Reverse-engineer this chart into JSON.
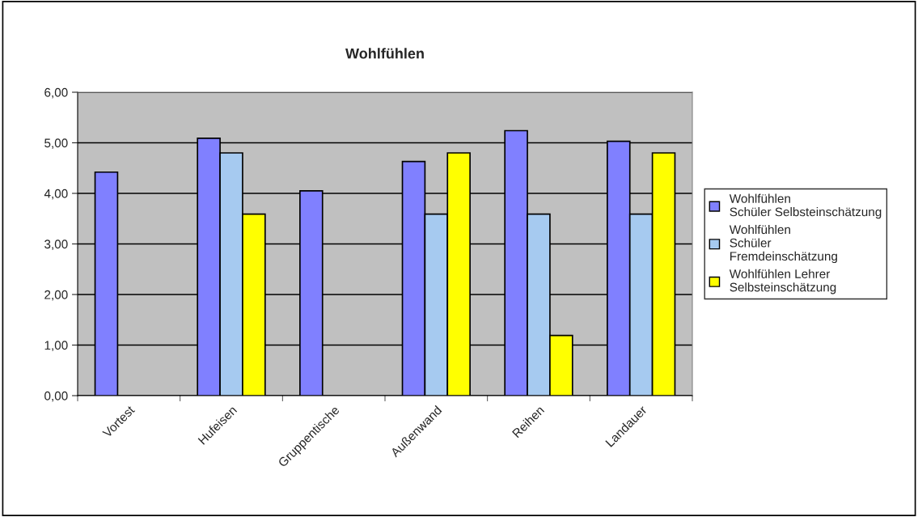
{
  "chart_data": {
    "type": "bar",
    "title": "Wohlfühlen",
    "categories": [
      "Vortest",
      "Hufeisen",
      "Gruppentische",
      "Außenwand",
      "Reihen",
      "Landauer"
    ],
    "series": [
      {
        "name": "Wohlfühlen Schüler Selbsteinschätzung",
        "color": "#8080ff",
        "values": [
          4.42,
          5.09,
          4.05,
          4.63,
          5.24,
          5.03
        ]
      },
      {
        "name": "Wohlfühlen Schüler Fremdeinschätzung",
        "color": "#a6caf0",
        "values": [
          null,
          4.8,
          null,
          3.59,
          3.59,
          3.59
        ]
      },
      {
        "name": "Wohlfühlen Lehrer Selbsteinschätzung",
        "color": "#ffff00",
        "values": [
          null,
          3.59,
          null,
          4.8,
          1.19,
          4.8
        ]
      }
    ],
    "ylim": [
      0,
      6
    ],
    "yticks": [
      {
        "value": 0,
        "label": "0,00"
      },
      {
        "value": 1,
        "label": "1,00"
      },
      {
        "value": 2,
        "label": "2,00"
      },
      {
        "value": 3,
        "label": "3,00"
      },
      {
        "value": 4,
        "label": "4,00"
      },
      {
        "value": 5,
        "label": "5,00"
      },
      {
        "value": 6,
        "label": "6,00"
      }
    ],
    "grid": "y",
    "legend": "right"
  }
}
